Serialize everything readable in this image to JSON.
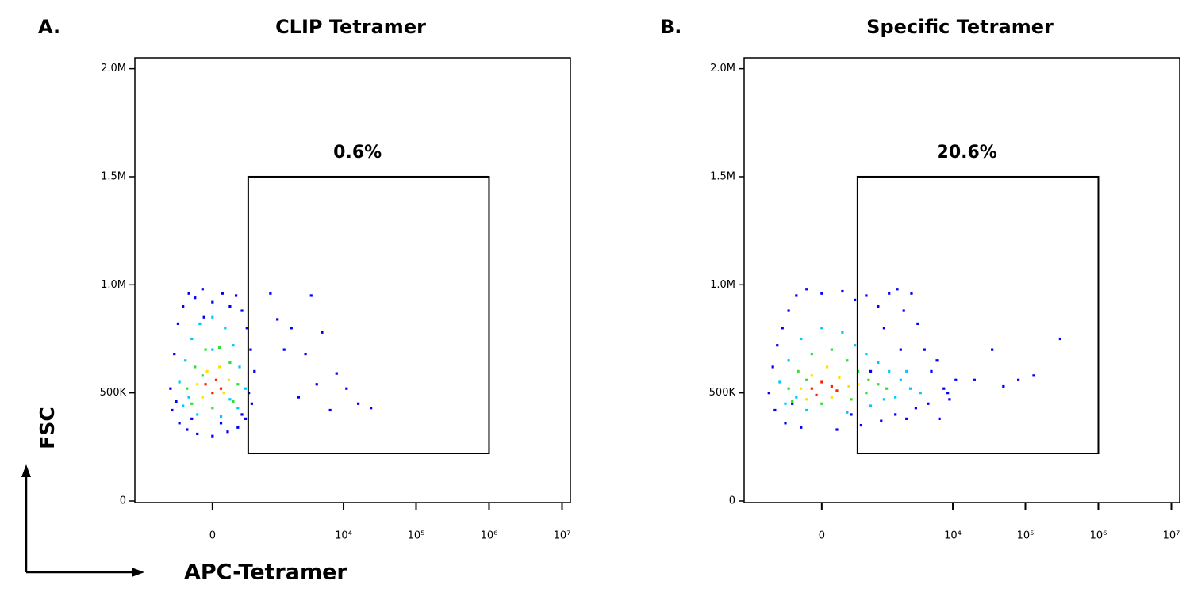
{
  "chart_data": [
    {
      "type": "scatter",
      "panel_label": "A.",
      "title": "CLIP Tetramer",
      "xlabel": "APC-Tetramer",
      "ylabel": "FSC",
      "xscale": "symlog",
      "xlim": [
        -1500,
        13000000
      ],
      "ylim": [
        0,
        2050000
      ],
      "xticks": [
        0,
        {
          "value": 10000,
          "label": "10⁴"
        },
        {
          "value": 100000,
          "label": "10⁵"
        },
        {
          "value": 1000000,
          "label": "10⁶"
        },
        {
          "value": 10000000,
          "label": "10⁷"
        }
      ],
      "yticks": [
        0,
        {
          "value": 500000,
          "label": "500K"
        },
        {
          "value": 1000000,
          "label": "1.0M"
        },
        {
          "value": 1500000,
          "label": "1.5M"
        },
        {
          "value": 2000000,
          "label": "2.0M"
        }
      ],
      "series": [
        {
          "color": "#0000ff",
          "x": [
            -450,
            -380,
            -320,
            -250,
            -180,
            -120,
            -60,
            0,
            60,
            120,
            180,
            250,
            320,
            380,
            450,
            -420,
            -300,
            -200,
            -100,
            0,
            100,
            200,
            300,
            400,
            -350,
            -150,
            50,
            250,
            350,
            -50,
            850,
            1100,
            1400,
            1800,
            2300,
            2900,
            3500,
            4200,
            5000,
            6500,
            8000,
            11000,
            16000,
            24000
          ],
          "y": [
            520000,
            680000,
            820000,
            900000,
            960000,
            940000,
            980000,
            920000,
            960000,
            900000,
            950000,
            880000,
            800000,
            700000,
            600000,
            420000,
            360000,
            330000,
            310000,
            300000,
            320000,
            340000,
            380000,
            450000,
            460000,
            380000,
            360000,
            400000,
            500000,
            850000,
            960000,
            840000,
            700000,
            800000,
            480000,
            680000,
            950000,
            540000,
            780000,
            420000,
            590000,
            520000,
            450000,
            430000
          ]
        },
        {
          "color": "#00c8ff",
          "x": [
            -300,
            -220,
            -150,
            -80,
            0,
            80,
            150,
            220,
            300,
            -250,
            -100,
            50,
            200,
            -180,
            120,
            0
          ],
          "y": [
            550000,
            650000,
            750000,
            820000,
            850000,
            800000,
            720000,
            620000,
            520000,
            440000,
            400000,
            390000,
            430000,
            480000,
            470000,
            700000
          ]
        },
        {
          "color": "#30e030",
          "x": [
            -200,
            -120,
            -40,
            40,
            120,
            200,
            -150,
            0,
            150,
            -60
          ],
          "y": [
            520000,
            620000,
            700000,
            710000,
            640000,
            540000,
            450000,
            430000,
            460000,
            580000
          ]
        },
        {
          "color": "#ffe000",
          "x": [
            -100,
            -30,
            40,
            110,
            -60,
            70
          ],
          "y": [
            540000,
            600000,
            620000,
            560000,
            480000,
            500000
          ]
        },
        {
          "color": "#ff2000",
          "x": [
            -40,
            20,
            0,
            50
          ],
          "y": [
            540000,
            560000,
            500000,
            520000
          ]
        }
      ],
      "gate": {
        "x": [
          340,
          1000000
        ],
        "y": [
          220000,
          1500000
        ],
        "values": [
          0.6
        ],
        "value_labels": [
          "0.6%"
        ]
      }
    },
    {
      "type": "scatter",
      "panel_label": "B.",
      "title": "Specific Tetramer",
      "xscale": "symlog",
      "xlim": [
        -1500,
        13000000
      ],
      "ylim": [
        0,
        2050000
      ],
      "xticks": [
        0,
        {
          "value": 10000,
          "label": "10⁴"
        },
        {
          "value": 100000,
          "label": "10⁵"
        },
        {
          "value": 1000000,
          "label": "10⁶"
        },
        {
          "value": 10000000,
          "label": "10⁷"
        }
      ],
      "yticks": [
        0,
        {
          "value": 500000,
          "label": "500K"
        },
        {
          "value": 1000000,
          "label": "1.0M"
        },
        {
          "value": 1500000,
          "label": "1.5M"
        },
        {
          "value": 2000000,
          "label": "2.0M"
        }
      ],
      "series": [
        {
          "color": "#0000ff",
          "x": [
            -700,
            -600,
            -500,
            -400,
            -300,
            -200,
            -100,
            0,
            150,
            300,
            500,
            800,
            1200,
            1600,
            2000,
            2600,
            3200,
            4000,
            5000,
            6000,
            7500,
            9000,
            11000,
            -550,
            -350,
            -150,
            100,
            400,
            900,
            1500,
            2200,
            3000,
            4500,
            6500,
            8500,
            1000,
            1800,
            600,
            250,
            -250,
            20000,
            35000,
            50000,
            80000,
            130000,
            300000
          ],
          "y": [
            500000,
            620000,
            720000,
            800000,
            880000,
            950000,
            980000,
            960000,
            970000,
            930000,
            950000,
            900000,
            960000,
            980000,
            880000,
            960000,
            820000,
            700000,
            600000,
            650000,
            520000,
            470000,
            560000,
            420000,
            360000,
            340000,
            330000,
            350000,
            370000,
            400000,
            380000,
            430000,
            450000,
            380000,
            500000,
            800000,
            700000,
            600000,
            400000,
            450000,
            560000,
            700000,
            530000,
            560000,
            580000,
            750000
          ]
        },
        {
          "color": "#00c8ff",
          "x": [
            -450,
            -300,
            -150,
            0,
            150,
            300,
            500,
            800,
            1200,
            1800,
            2500,
            3500,
            -350,
            -100,
            200,
            600,
            1000,
            1500,
            2200,
            -200
          ],
          "y": [
            550000,
            650000,
            750000,
            800000,
            780000,
            720000,
            680000,
            640000,
            600000,
            560000,
            520000,
            500000,
            450000,
            420000,
            410000,
            440000,
            470000,
            480000,
            600000,
            480000
          ]
        },
        {
          "color": "#30e030",
          "x": [
            -300,
            -180,
            -60,
            60,
            200,
            350,
            550,
            800,
            1100,
            -250,
            0,
            250,
            500,
            -100
          ],
          "y": [
            520000,
            600000,
            680000,
            700000,
            650000,
            600000,
            560000,
            540000,
            520000,
            460000,
            450000,
            470000,
            500000,
            560000
          ]
        },
        {
          "color": "#ffe000",
          "x": [
            -150,
            -60,
            30,
            120,
            220,
            -100,
            60,
            350
          ],
          "y": [
            520000,
            580000,
            620000,
            570000,
            530000,
            470000,
            480000,
            540000
          ]
        },
        {
          "color": "#ff2000",
          "x": [
            -60,
            0,
            60,
            -30,
            100
          ],
          "y": [
            520000,
            550000,
            530000,
            490000,
            510000
          ]
        }
      ],
      "gate": {
        "x": [
          340,
          1000000
        ],
        "y": [
          220000,
          1500000
        ],
        "values": [
          20.6
        ],
        "value_labels": [
          "20.6%"
        ]
      }
    }
  ]
}
